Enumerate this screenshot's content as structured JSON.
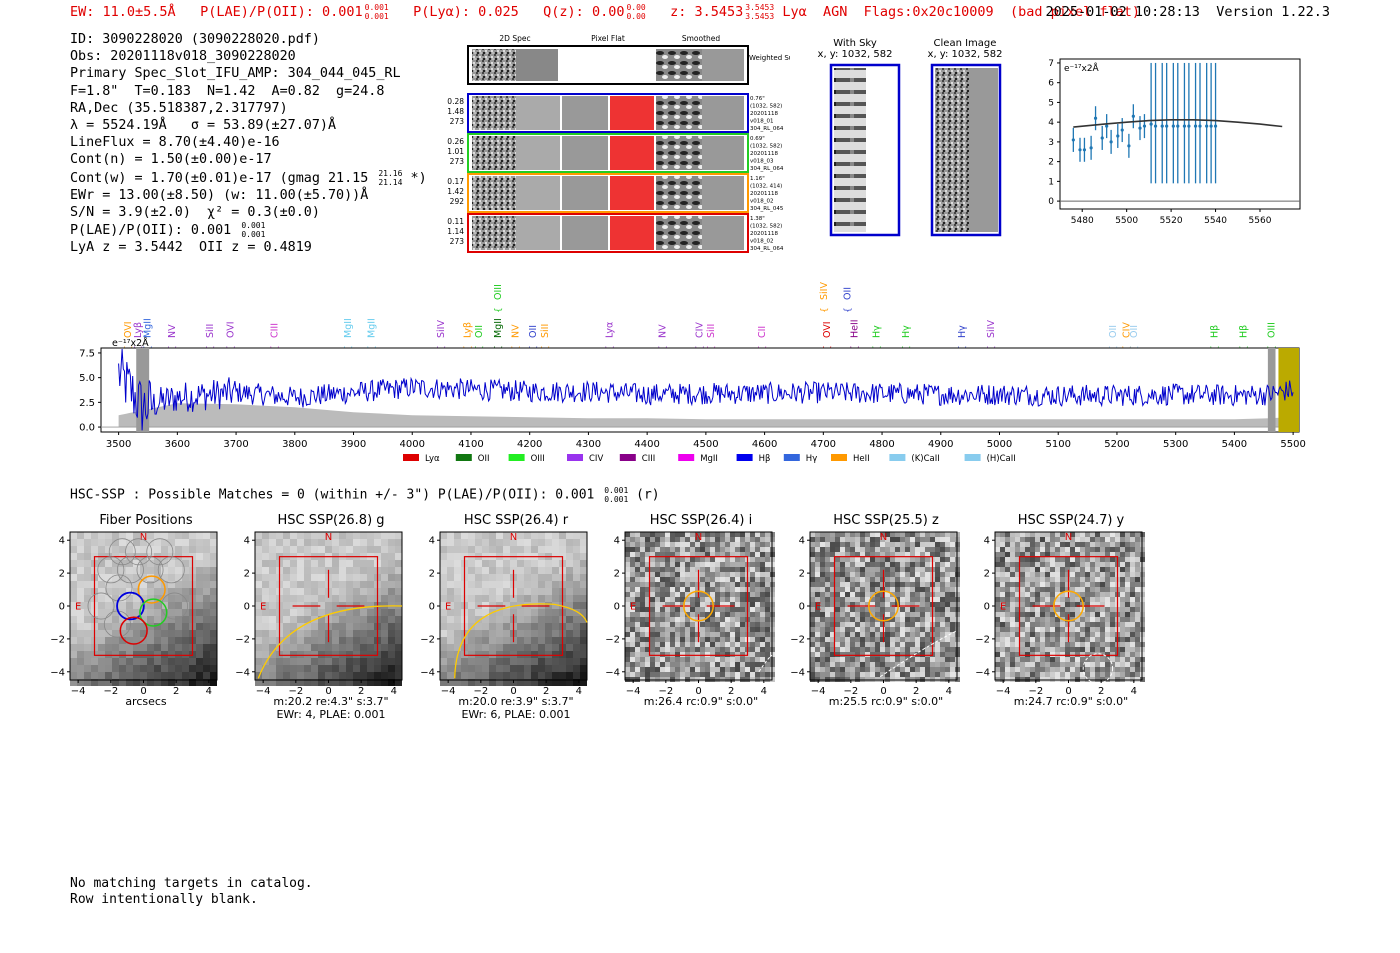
{
  "header": {
    "ew": "EW: 11.0±5.5Å",
    "plae_label": "P(LAE)/P(OII): 0.001",
    "plae_hi": "0.001",
    "plae_lo": "0.001",
    "plya": "P(Lyα): 0.025",
    "qz_label": "Q(z): 0.00",
    "qz_hi": "0.00",
    "qz_lo": "0.00",
    "z_label": "z: 3.5453",
    "z_hi": "3.5453",
    "z_lo": "3.5453",
    "line": "Lyα",
    "agn": "AGN",
    "flags": "Flags:0x20c10009",
    "bad_pixel": "(bad pixel flat)",
    "timestamp": "2025-01-02 10:28:13",
    "version": "Version 1.22.3"
  },
  "info": {
    "line1": "ID: 3090228020 (3090228020.pdf)",
    "line2": "Obs: 20201118v018_3090228020",
    "line3": "Primary Spec_Slot_IFU_AMP: 304_044_045_RL",
    "line4": "F=1.8\"  T=0.183  N=1.42  A=0.82  g=24.8",
    "line5": "RA,Dec (35.518387,2.317797)",
    "line6": "λ = 5524.19Å   σ = 53.89(±27.07)Å",
    "line7": "LineFlux = 8.70(±4.40)e-16",
    "line8": "Cont(n) = 1.50(±0.00)e-17",
    "line9a": "Cont(w) = 1.70(±0.01)e-17 (gmag 21.15",
    "line9_hi": "21.16",
    "line9_lo": "21.14",
    "line9b": "*)",
    "line10": "EWr = 13.00(±8.50) (w: 11.00(±5.70))Å",
    "line11": "S/N = 3.9(±2.0)  χ² = 0.3(±0.0)",
    "line12a": "P(LAE)/P(OII): 0.001",
    "line12_hi": "0.001",
    "line12_lo": "0.001",
    "line13": "LyA z = 3.5442  OII z = 0.4819"
  },
  "cutouts2d": {
    "col_titles": [
      "2D Spec",
      "Pixel Flat",
      "Smoothed"
    ],
    "sum_label": "Weighted Sum",
    "rows": [
      {
        "left": [
          "0.28",
          "1.48",
          "273"
        ],
        "right": [
          "0.76\"",
          "(1032, 582)",
          "20201118",
          "v018_01",
          "304_RL_064"
        ],
        "color": "#0000cc"
      },
      {
        "left": [
          "0.26",
          "1.01",
          "273"
        ],
        "right": [
          "0.69\"",
          "(1032, 582)",
          "20201118",
          "v018_03",
          "304_RL_064"
        ],
        "color": "#22cc22"
      },
      {
        "left": [
          "0.17",
          "1.42",
          "292"
        ],
        "right": [
          "1.16\"",
          "(1032, 414)",
          "20201118",
          "v018_02",
          "304_RL_045"
        ],
        "color": "#ff9900"
      },
      {
        "left": [
          "0.11",
          "1.14",
          "273"
        ],
        "right": [
          "1.38\"",
          "(1032, 582)",
          "20201118",
          "v018_02",
          "304_RL_064"
        ],
        "color": "#dd0000"
      }
    ]
  },
  "stamps": {
    "sky_title": "With Sky",
    "sky_coords": "x, y: 1032, 582",
    "clean_title": "Clean Image",
    "clean_coords": "x, y: 1032, 582"
  },
  "zoom_plot": {
    "unit_label": "e⁻¹⁷x2Å",
    "x_ticks": [
      "5480",
      "5500",
      "5520",
      "5540",
      "5560"
    ],
    "y_ticks": [
      "0",
      "1",
      "2",
      "3",
      "4",
      "5",
      "6",
      "7"
    ]
  },
  "spectrum": {
    "unit_label": "e⁻¹⁷x2Å",
    "y_ticks": [
      "0.0",
      "2.5",
      "5.0",
      "7.5"
    ],
    "x_ticks": [
      "3500",
      "3600",
      "3700",
      "3800",
      "3900",
      "4000",
      "4100",
      "4200",
      "4300",
      "4400",
      "4500",
      "4600",
      "4700",
      "4800",
      "4900",
      "5000",
      "5100",
      "5200",
      "5300",
      "5400",
      "5500"
    ],
    "line_markers": [
      {
        "label": "OVI",
        "x": 3515,
        "color": "#ff9900"
      },
      {
        "label": "Lyβ",
        "x": 3532,
        "color": "#9933cc"
      },
      {
        "label": "MgII",
        "x": 3548,
        "color": "#3366dd"
      },
      {
        "label": "NV",
        "x": 3590,
        "color": "#9933cc"
      },
      {
        "label": "SiII",
        "x": 3655,
        "color": "#9933cc"
      },
      {
        "label": "OVI",
        "x": 3690,
        "color": "#9933cc"
      },
      {
        "label": "CIII",
        "x": 3765,
        "color": "#cc33cc"
      },
      {
        "label": "MgII",
        "x": 3890,
        "color": "#66ccee"
      },
      {
        "label": "MgII",
        "x": 3930,
        "color": "#66ccee"
      },
      {
        "label": "SiIV",
        "x": 4048,
        "color": "#9933cc"
      },
      {
        "label": "Lyβ",
        "x": 4093,
        "color": "#ff9900"
      },
      {
        "label": "OII",
        "x": 4113,
        "color": "#22cc22"
      },
      {
        "label": "MgII",
        "x": 4145,
        "color": "#006600"
      },
      {
        "label": "NV",
        "x": 4175,
        "color": "#ff9900"
      },
      {
        "label": "OII",
        "x": 4205,
        "color": "#3344cc"
      },
      {
        "label": "SiII",
        "x": 4225,
        "color": "#ff9900"
      },
      {
        "label": "Lyα",
        "x": 4335,
        "color": "#9933cc"
      },
      {
        "label": "NV",
        "x": 4425,
        "color": "#9933cc"
      },
      {
        "label": "CIV",
        "x": 4488,
        "color": "#9933cc"
      },
      {
        "label": "SiII",
        "x": 4508,
        "color": "#cc33cc"
      },
      {
        "label": "CII",
        "x": 4595,
        "color": "#cc33cc"
      },
      {
        "label": "OVI",
        "x": 4705,
        "color": "#dd0000"
      },
      {
        "label": "HeII",
        "x": 4752,
        "color": "#880088"
      },
      {
        "label": "Hγ",
        "x": 4790,
        "color": "#22cc22"
      },
      {
        "label": "Hγ",
        "x": 4840,
        "color": "#22cc22"
      },
      {
        "label": "Hγ",
        "x": 4935,
        "color": "#3344cc"
      },
      {
        "label": "SiIV",
        "x": 4985,
        "color": "#9933cc"
      },
      {
        "label": "OII",
        "x": 5192,
        "color": "#99ccee"
      },
      {
        "label": "CIV",
        "x": 5215,
        "color": "#ff9900"
      },
      {
        "label": "OII",
        "x": 5228,
        "color": "#99ccee"
      },
      {
        "label": "Hβ",
        "x": 5365,
        "color": "#22cc22"
      },
      {
        "label": "Hβ",
        "x": 5415,
        "color": "#22cc22"
      },
      {
        "label": "OIII",
        "x": 5462,
        "color": "#22cc22"
      }
    ],
    "upper_markers": [
      {
        "label": "OIII",
        "x": 4145,
        "color": "#22cc22"
      },
      {
        "label": "SiIV",
        "x": 4700,
        "color": "#ff9900"
      },
      {
        "label": "OII",
        "x": 4740,
        "color": "#3344cc"
      }
    ],
    "legend": [
      {
        "label": "Lyα",
        "color": "#dd0000"
      },
      {
        "label": "OII",
        "color": "#117711"
      },
      {
        "label": "OIII",
        "color": "#22ee22"
      },
      {
        "label": "CIV",
        "color": "#9933ee"
      },
      {
        "label": "CIII",
        "color": "#880088"
      },
      {
        "label": "MgII",
        "color": "#ee00ee"
      },
      {
        "label": "Hβ",
        "color": "#0000ee"
      },
      {
        "label": "Hγ",
        "color": "#3366dd"
      },
      {
        "label": "HeII",
        "color": "#ff9900"
      },
      {
        "label": "(K)CaII",
        "color": "#88ccee"
      },
      {
        "label": "(H)CaII",
        "color": "#88ccee"
      }
    ]
  },
  "chart_data": [
    {
      "type": "line",
      "title": "",
      "xlabel": "",
      "ylabel": "e⁻¹⁷x2Å",
      "xlim": [
        3470,
        5510
      ],
      "ylim": [
        -0.5,
        8.0
      ],
      "series": [
        {
          "color": "#0000cc",
          "x": [
            3500,
            3540,
            3600,
            3700,
            3800,
            3900,
            4000,
            4100,
            4200,
            4300,
            4400,
            4500,
            4600,
            4700,
            4800,
            4900,
            5000,
            5100,
            5200,
            5300,
            5400,
            5460,
            5500
          ],
          "values": [
            5.5,
            2.0,
            3.0,
            3.5,
            3.0,
            3.5,
            4.0,
            3.8,
            3.6,
            3.6,
            3.3,
            3.4,
            3.4,
            3.5,
            3.4,
            3.3,
            3.3,
            3.2,
            3.2,
            3.3,
            3.2,
            3.3,
            3.8
          ]
        },
        {
          "color": "#bbbbbb",
          "x": [
            3500,
            3550,
            3600,
            3700,
            3800,
            3900,
            4000,
            4100,
            4200,
            4300,
            4400,
            4500,
            4600,
            4700,
            4800,
            4900,
            5000,
            5100,
            5200,
            5300,
            5400,
            5460,
            5500
          ],
          "values": [
            1.2,
            1.8,
            2.4,
            2.3,
            2.0,
            1.5,
            1.2,
            1.1,
            1.0,
            0.9,
            0.9,
            0.8,
            0.8,
            0.8,
            0.8,
            0.8,
            0.8,
            0.8,
            0.8,
            0.8,
            0.8,
            0.9,
            1.0
          ]
        }
      ]
    },
    {
      "type": "scatter",
      "title": "",
      "xlabel": "",
      "ylabel": "e⁻¹⁷x2Å",
      "xlim": [
        5470,
        5578
      ],
      "ylim": [
        -0.4,
        7.2
      ],
      "series": [
        {
          "color": "#1f77b4",
          "x": [
            5476,
            5479,
            5481,
            5484,
            5486,
            5489,
            5491,
            5493,
            5496,
            5498,
            5501,
            5503,
            5506,
            5508,
            5511,
            5513,
            5516,
            5518,
            5521,
            5523,
            5526,
            5528,
            5531,
            5533,
            5536,
            5538,
            5540
          ],
          "values": [
            3.1,
            2.6,
            2.6,
            2.7,
            4.2,
            3.2,
            3.8,
            3.0,
            3.3,
            3.6,
            2.8,
            4.3,
            3.7,
            3.8,
            3.9,
            3.8,
            3.8,
            3.8,
            3.8,
            3.8,
            3.8,
            3.8,
            3.8,
            3.8,
            3.8,
            3.8,
            3.8
          ]
        },
        {
          "color": "#333333",
          "x": [
            5476,
            5490,
            5500,
            5510,
            5520,
            5530,
            5540,
            5550,
            5560,
            5570
          ],
          "values": [
            3.75,
            3.9,
            4.0,
            4.08,
            4.12,
            4.12,
            4.08,
            4.0,
            3.9,
            3.78
          ]
        }
      ]
    }
  ],
  "hsc": {
    "line_a": "HSC-SSP : Possible Matches = 0 (within +/- 3\")  P(LAE)/P(OII): 0.001",
    "line_hi": "0.001",
    "line_lo": "0.001",
    "line_b": "(r)",
    "axis_ticks_x": [
      "−4",
      "−2",
      "0",
      "2",
      "4"
    ],
    "axis_ticks_y": [
      "4",
      "2",
      "0",
      "−2",
      "−4"
    ],
    "north": "N",
    "east": "E",
    "panels": [
      {
        "title": "Fiber Positions",
        "cap1": "arcsecs",
        "cap2": ""
      },
      {
        "title": "HSC SSP(26.8) g",
        "cap1": "m:20.2  re:4.3\"  s:3.7\"",
        "cap2": "EWr: 4, PLAE: 0.001"
      },
      {
        "title": "HSC SSP(26.4) r",
        "cap1": "m:20.0  re:3.9\"  s:3.7\"",
        "cap2": "EWr: 6, PLAE: 0.001"
      },
      {
        "title": "HSC SSP(26.4) i",
        "cap1": "m:26.4 rc:0.9\"  s:0.0\"",
        "cap2": ""
      },
      {
        "title": "HSC SSP(25.5) z",
        "cap1": "m:25.5 rc:0.9\"  s:0.0\"",
        "cap2": ""
      },
      {
        "title": "HSC SSP(24.7) y",
        "cap1": "m:24.7 rc:0.9\"  s:0.0\"",
        "cap2": ""
      }
    ]
  },
  "footer": {
    "line1": "No matching targets in catalog.",
    "line2": "Row intentionally blank."
  }
}
